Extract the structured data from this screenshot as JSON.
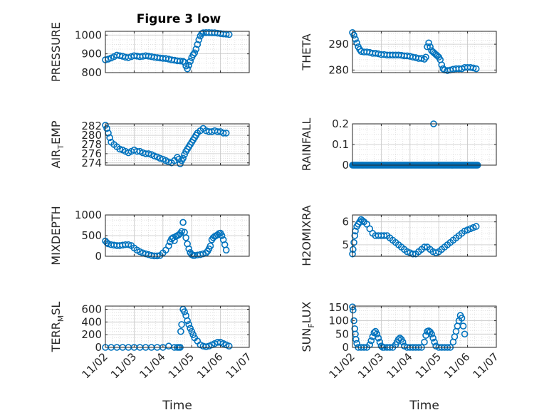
{
  "figure_title": "Figure 3 low",
  "chart_data": [
    {
      "type": "scatter",
      "panel": "top-left",
      "ylabel": "PRESSURE",
      "ylim": [
        800,
        1020
      ],
      "yticks": [
        800,
        900,
        1000
      ],
      "xlim": [
        "11/02",
        "11/07"
      ],
      "xticks": [
        "11/02",
        "11/03",
        "11/04",
        "11/05",
        "11/06",
        "11/07"
      ],
      "grid": true,
      "x": [
        2.0,
        2.1,
        2.2,
        2.3,
        2.4,
        2.5,
        2.6,
        2.7,
        2.8,
        2.9,
        3.0,
        3.1,
        3.2,
        3.3,
        3.4,
        3.5,
        3.6,
        3.7,
        3.8,
        3.9,
        4.0,
        4.1,
        4.2,
        4.3,
        4.4,
        4.5,
        4.6,
        4.7,
        4.75,
        4.8,
        4.85,
        4.9,
        4.95,
        5.0,
        5.05,
        5.1,
        5.15,
        5.2,
        5.25,
        5.3,
        5.35,
        5.4,
        5.5,
        5.6,
        5.7,
        5.8,
        5.9,
        6.0,
        6.1,
        6.2,
        6.3
      ],
      "y": [
        868,
        872,
        878,
        885,
        893,
        890,
        887,
        882,
        880,
        885,
        890,
        888,
        885,
        887,
        890,
        888,
        885,
        882,
        880,
        878,
        876,
        875,
        872,
        868,
        866,
        863,
        862,
        860,
        855,
        835,
        820,
        840,
        860,
        880,
        895,
        905,
        925,
        950,
        975,
        995,
        1008,
        1012,
        1013,
        1013,
        1012,
        1012,
        1010,
        1008,
        1006,
        1005,
        1003
      ]
    },
    {
      "type": "scatter",
      "panel": "top-right",
      "ylabel": "THETA",
      "ylim": [
        279,
        295
      ],
      "yticks": [
        280,
        290
      ],
      "xlim": [
        "11/02",
        "11/07"
      ],
      "xticks": [
        "11/02",
        "11/03",
        "11/04",
        "11/05",
        "11/06",
        "11/07"
      ],
      "grid": true,
      "x": [
        2.0,
        2.05,
        2.1,
        2.15,
        2.2,
        2.25,
        2.3,
        2.4,
        2.5,
        2.6,
        2.7,
        2.8,
        2.9,
        3.0,
        3.1,
        3.2,
        3.3,
        3.4,
        3.5,
        3.6,
        3.7,
        3.8,
        3.9,
        4.0,
        4.1,
        4.2,
        4.3,
        4.4,
        4.5,
        4.55,
        4.6,
        4.65,
        4.7,
        4.75,
        4.8,
        4.85,
        4.9,
        4.95,
        5.0,
        5.05,
        5.1,
        5.15,
        5.2,
        5.3,
        5.4,
        5.5,
        5.6,
        5.7,
        5.8,
        5.9,
        6.0,
        6.1,
        6.2,
        6.3
      ],
      "y": [
        294.5,
        293.5,
        292,
        290.5,
        289,
        288,
        287.2,
        287,
        287,
        286.8,
        286.5,
        286.5,
        286.3,
        286,
        286,
        285.8,
        285.8,
        285.8,
        285.8,
        285.8,
        285.7,
        285.5,
        285.5,
        285.3,
        285,
        284.8,
        284.5,
        284.5,
        284.2,
        285,
        289,
        290.5,
        289,
        287.5,
        287,
        286.5,
        286,
        285.5,
        285,
        284,
        282,
        280.5,
        280,
        279.8,
        280,
        280.3,
        280.5,
        280.5,
        280.5,
        281,
        281,
        281,
        280.8,
        280.5
      ]
    },
    {
      "type": "scatter",
      "panel": "row2-left",
      "ylabel": "AIR_TEMP",
      "ylim": [
        273.5,
        282.5
      ],
      "yticks": [
        274,
        276,
        278,
        280,
        282
      ],
      "xlim": [
        "11/02",
        "11/07"
      ],
      "xticks": [
        "11/02",
        "11/03",
        "11/04",
        "11/05",
        "11/06",
        "11/07"
      ],
      "grid": true,
      "x": [
        2.0,
        2.05,
        2.1,
        2.15,
        2.2,
        2.3,
        2.4,
        2.5,
        2.6,
        2.7,
        2.8,
        2.9,
        3.0,
        3.1,
        3.2,
        3.3,
        3.4,
        3.5,
        3.6,
        3.7,
        3.8,
        3.9,
        4.0,
        4.1,
        4.2,
        4.3,
        4.4,
        4.5,
        4.55,
        4.6,
        4.65,
        4.7,
        4.75,
        4.8,
        4.85,
        4.9,
        4.95,
        5.0,
        5.05,
        5.1,
        5.15,
        5.2,
        5.3,
        5.4,
        5.5,
        5.6,
        5.7,
        5.8,
        5.9,
        6.0,
        6.1,
        6.2
      ],
      "y": [
        282.2,
        281.5,
        280.5,
        279.5,
        278.5,
        278,
        277.5,
        277,
        276.8,
        276.5,
        276.2,
        276.5,
        276.8,
        276.5,
        276.5,
        276.2,
        276,
        276,
        275.8,
        275.5,
        275.3,
        275,
        274.8,
        274.5,
        274.2,
        274,
        274.5,
        275.2,
        274.8,
        273.8,
        274.5,
        275,
        275.8,
        276.5,
        277,
        277.5,
        278,
        278.5,
        279,
        279.5,
        280,
        280.5,
        281,
        281.5,
        281,
        280.8,
        280.8,
        281,
        280.8,
        280.8,
        280.5,
        280.5
      ]
    },
    {
      "type": "scatter",
      "panel": "row2-right",
      "ylabel": "RAINFALL",
      "ylim": [
        0,
        0.2
      ],
      "yticks": [
        0,
        0.1,
        0.2
      ],
      "xlim": [
        "11/02",
        "11/07"
      ],
      "xticks": [
        "11/02",
        "11/03",
        "11/04",
        "11/05",
        "11/06",
        "11/07"
      ],
      "grid": true,
      "x_start": 2.0,
      "x_end": 6.35,
      "baseline_value": 0,
      "spike_x": 4.82,
      "spike_y": 0.2
    },
    {
      "type": "scatter",
      "panel": "row3-left",
      "ylabel": "MIXDEPTH",
      "ylim": [
        0,
        1000
      ],
      "yticks": [
        0,
        500,
        1000
      ],
      "xlim": [
        "11/02",
        "11/07"
      ],
      "xticks": [
        "11/02",
        "11/03",
        "11/04",
        "11/05",
        "11/06",
        "11/07"
      ],
      "grid": true,
      "x": [
        2.0,
        2.05,
        2.1,
        2.2,
        2.3,
        2.4,
        2.5,
        2.6,
        2.7,
        2.8,
        2.9,
        3.0,
        3.1,
        3.2,
        3.3,
        3.4,
        3.5,
        3.6,
        3.7,
        3.8,
        3.9,
        4.0,
        4.1,
        4.2,
        4.25,
        4.3,
        4.35,
        4.4,
        4.45,
        4.5,
        4.55,
        4.6,
        4.65,
        4.7,
        4.75,
        4.8,
        4.85,
        4.9,
        4.95,
        5.0,
        5.05,
        5.1,
        5.2,
        5.3,
        5.4,
        5.5,
        5.55,
        5.6,
        5.65,
        5.7,
        5.75,
        5.8,
        5.85,
        5.9,
        5.95,
        6.0,
        6.05,
        6.1,
        6.15,
        6.2
      ],
      "y": [
        370,
        330,
        300,
        280,
        270,
        260,
        260,
        270,
        280,
        280,
        260,
        200,
        150,
        110,
        80,
        60,
        40,
        20,
        10,
        10,
        20,
        80,
        150,
        250,
        350,
        420,
        450,
        380,
        480,
        500,
        520,
        550,
        600,
        820,
        580,
        450,
        300,
        180,
        90,
        40,
        20,
        20,
        30,
        40,
        60,
        80,
        120,
        180,
        250,
        400,
        450,
        480,
        500,
        520,
        550,
        560,
        500,
        400,
        280,
        150
      ]
    },
    {
      "type": "scatter",
      "panel": "row3-right",
      "ylabel": "H2OMIXRA",
      "ylim": [
        4.5,
        6.3
      ],
      "yticks": [
        5,
        6
      ],
      "xlim": [
        "11/02",
        "11/07"
      ],
      "xticks": [
        "11/02",
        "11/03",
        "11/04",
        "11/05",
        "11/06",
        "11/07"
      ],
      "grid": true,
      "x": [
        2.0,
        2.02,
        2.05,
        2.08,
        2.1,
        2.15,
        2.2,
        2.25,
        2.3,
        2.35,
        2.4,
        2.5,
        2.6,
        2.7,
        2.8,
        2.9,
        3.0,
        3.1,
        3.2,
        3.3,
        3.4,
        3.5,
        3.6,
        3.7,
        3.8,
        3.9,
        4.0,
        4.1,
        4.2,
        4.3,
        4.4,
        4.5,
        4.6,
        4.7,
        4.8,
        4.9,
        5.0,
        5.1,
        5.2,
        5.3,
        5.4,
        5.5,
        5.6,
        5.7,
        5.8,
        5.9,
        6.0,
        6.1,
        6.2,
        6.3
      ],
      "y": [
        4.6,
        4.8,
        5.1,
        5.4,
        5.6,
        5.8,
        5.9,
        6.0,
        6.1,
        6.05,
        6.0,
        5.9,
        5.7,
        5.5,
        5.4,
        5.4,
        5.4,
        5.4,
        5.4,
        5.3,
        5.2,
        5.1,
        5.0,
        4.9,
        4.8,
        4.7,
        4.65,
        4.6,
        4.6,
        4.7,
        4.8,
        4.9,
        4.9,
        4.8,
        4.7,
        4.65,
        4.7,
        4.8,
        4.9,
        5.0,
        5.1,
        5.2,
        5.3,
        5.4,
        5.5,
        5.6,
        5.65,
        5.7,
        5.75,
        5.8
      ]
    },
    {
      "type": "scatter",
      "panel": "bottom-left",
      "ylabel": "TERR_MSL",
      "ylim": [
        0,
        650
      ],
      "yticks": [
        0,
        200,
        400,
        600
      ],
      "xlim": [
        "11/02",
        "11/07"
      ],
      "xticks": [
        "11/02",
        "11/03",
        "11/04",
        "11/05",
        "11/06",
        "11/07"
      ],
      "xlabel": "Time",
      "grid": true,
      "x": [
        2.0,
        2.2,
        2.4,
        2.6,
        2.8,
        3.0,
        3.2,
        3.4,
        3.6,
        3.8,
        4.0,
        4.2,
        4.4,
        4.5,
        4.55,
        4.6,
        4.62,
        4.65,
        4.7,
        4.75,
        4.8,
        4.85,
        4.9,
        4.95,
        5.0,
        5.05,
        5.1,
        5.2,
        5.3,
        5.4,
        5.5,
        5.6,
        5.7,
        5.8,
        5.9,
        6.0,
        6.1,
        6.2,
        6.3
      ],
      "y": [
        0,
        0,
        0,
        0,
        0,
        0,
        0,
        0,
        0,
        0,
        0,
        20,
        0,
        0,
        0,
        0,
        250,
        360,
        600,
        560,
        500,
        420,
        360,
        300,
        250,
        200,
        150,
        100,
        40,
        20,
        10,
        20,
        40,
        60,
        80,
        80,
        60,
        40,
        20
      ]
    },
    {
      "type": "scatter",
      "panel": "bottom-right",
      "ylabel": "SUN_FLUX",
      "ylim": [
        0,
        155
      ],
      "yticks": [
        0,
        50,
        100,
        150
      ],
      "xlim": [
        "11/02",
        "11/07"
      ],
      "xticks": [
        "11/02",
        "11/03",
        "11/04",
        "11/05",
        "11/06",
        "11/07"
      ],
      "xlabel": "Time",
      "grid": true,
      "x": [
        2.0,
        2.02,
        2.05,
        2.08,
        2.1,
        2.12,
        2.15,
        2.2,
        2.3,
        2.4,
        2.5,
        2.6,
        2.65,
        2.7,
        2.75,
        2.8,
        2.85,
        2.9,
        2.95,
        3.0,
        3.05,
        3.1,
        3.2,
        3.3,
        3.4,
        3.5,
        3.55,
        3.6,
        3.65,
        3.7,
        3.75,
        3.8,
        3.9,
        4.0,
        4.1,
        4.2,
        4.3,
        4.4,
        4.5,
        4.55,
        4.6,
        4.65,
        4.7,
        4.75,
        4.8,
        4.85,
        4.9,
        5.0,
        5.1,
        5.2,
        5.3,
        5.4,
        5.5,
        5.55,
        5.6,
        5.65,
        5.7,
        5.75,
        5.8,
        5.85,
        5.9
      ],
      "y": [
        152,
        140,
        100,
        70,
        50,
        30,
        15,
        0,
        0,
        0,
        0,
        10,
        25,
        40,
        55,
        60,
        50,
        35,
        20,
        5,
        0,
        0,
        0,
        0,
        0,
        10,
        20,
        30,
        35,
        30,
        20,
        5,
        0,
        0,
        0,
        0,
        0,
        0,
        20,
        45,
        60,
        62,
        58,
        50,
        35,
        20,
        5,
        0,
        0,
        0,
        0,
        0,
        20,
        40,
        60,
        80,
        100,
        120,
        110,
        80,
        50
      ]
    }
  ]
}
